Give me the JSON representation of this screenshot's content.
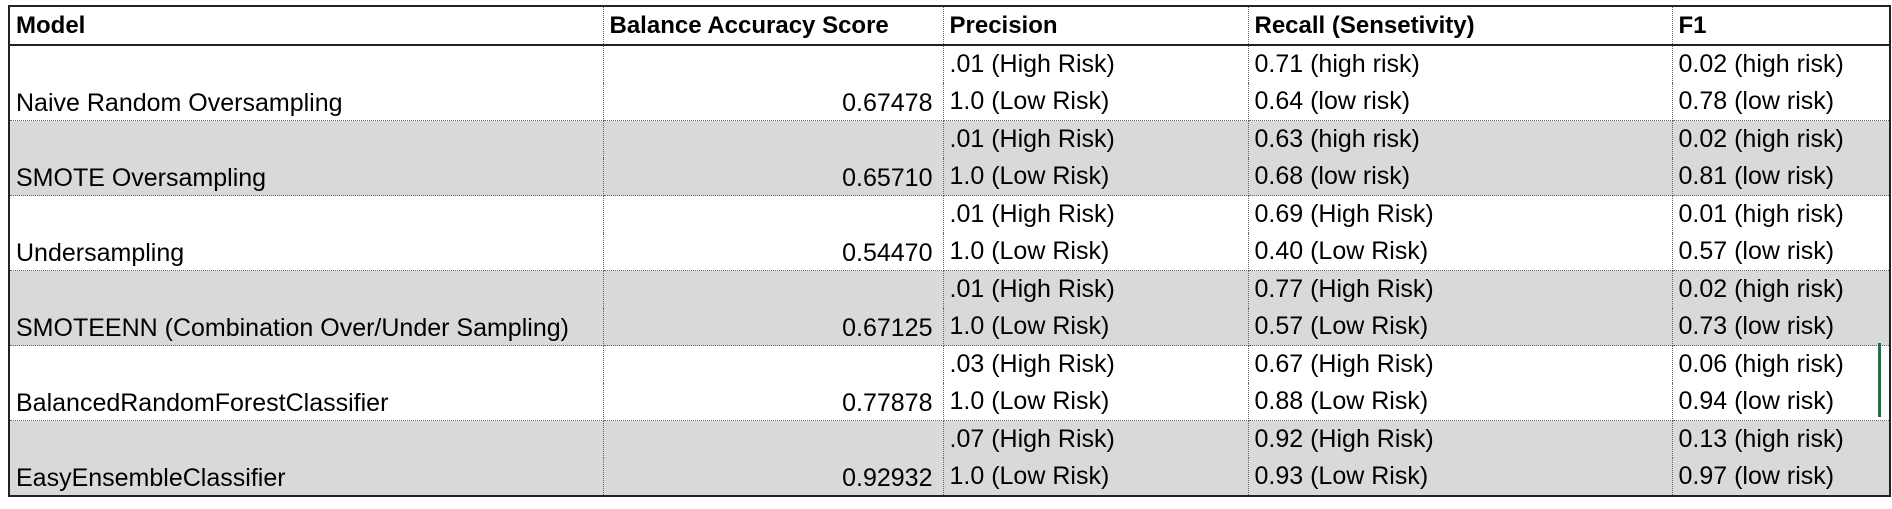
{
  "table": {
    "headers": [
      "Model",
      "Balance Accuracy Score",
      "Precision",
      "Recall (Sensetivity)",
      "F1"
    ],
    "rows": [
      {
        "model": "Naive Random Oversampling",
        "balanced_accuracy": "0.67478",
        "precision": [
          ".01 (High Risk)",
          "1.0 (Low Risk)"
        ],
        "recall": [
          "0.71 (high risk)",
          "0.64 (low risk)"
        ],
        "f1": [
          "0.02 (high risk)",
          "0.78 (low risk)"
        ]
      },
      {
        "model": "SMOTE Oversampling",
        "balanced_accuracy": "0.65710",
        "precision": [
          ".01 (High Risk)",
          "1.0 (Low Risk)"
        ],
        "recall": [
          "0.63 (high risk)",
          "0.68 (low risk)"
        ],
        "f1": [
          "0.02 (high risk)",
          "0.81 (low risk)"
        ]
      },
      {
        "model": "Undersampling",
        "balanced_accuracy": "0.54470",
        "precision": [
          ".01 (High Risk)",
          "1.0 (Low Risk)"
        ],
        "recall": [
          "0.69 (High Risk)",
          "0.40 (Low Risk)"
        ],
        "f1": [
          "0.01 (high risk)",
          "0.57 (low risk)"
        ]
      },
      {
        "model": "SMOTEENN (Combination Over/Under Sampling)",
        "balanced_accuracy": "0.67125",
        "precision": [
          ".01 (High Risk)",
          "1.0 (Low Risk)"
        ],
        "recall": [
          "0.77 (High Risk)",
          "0.57 (Low Risk)"
        ],
        "f1": [
          "0.02 (high risk)",
          "0.73 (low risk)"
        ]
      },
      {
        "model": "BalancedRandomForestClassifier",
        "balanced_accuracy": "0.77878",
        "precision": [
          ".03 (High Risk)",
          "1.0 (Low Risk)"
        ],
        "recall": [
          "0.67 (High Risk)",
          "0.88 (Low Risk)"
        ],
        "f1": [
          "0.06 (high risk)",
          "0.94 (low risk)"
        ]
      },
      {
        "model": "EasyEnsembleClassifier",
        "balanced_accuracy": "0.92932",
        "precision": [
          ".07 (High Risk)",
          "1.0 (Low Risk)"
        ],
        "recall": [
          "0.92 (High Risk)",
          "0.93 (Low Risk)"
        ],
        "f1": [
          "0.13 (high risk)",
          "0.97 (low risk)"
        ]
      }
    ]
  },
  "colors": {
    "shade": "#d9d9d9",
    "selection": "#1e7145"
  }
}
